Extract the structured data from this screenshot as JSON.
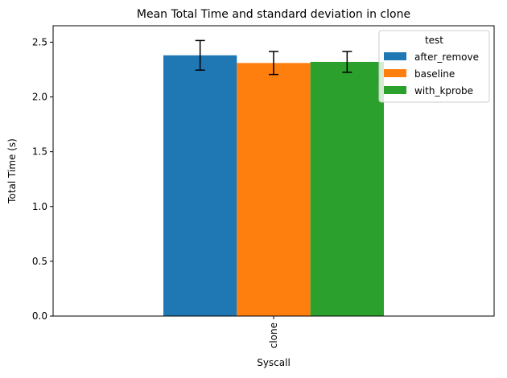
{
  "chart_data": {
    "type": "bar",
    "title": "Mean Total Time and standard deviation in clone",
    "xlabel": "Syscall",
    "ylabel": "Total Time (s)",
    "categories": [
      "clone"
    ],
    "ylim": [
      0,
      2.65
    ],
    "yticks": [
      0.0,
      0.5,
      1.0,
      1.5,
      2.0,
      2.5
    ],
    "ytick_labels": [
      "0.0",
      "0.5",
      "1.0",
      "1.5",
      "2.0",
      "2.5"
    ],
    "grid": false,
    "legend": {
      "title": "test",
      "placement": "top-right"
    },
    "series": [
      {
        "name": "after_remove",
        "values": [
          2.38
        ],
        "errors": [
          0.135
        ],
        "color": "#1f77b4"
      },
      {
        "name": "baseline",
        "values": [
          2.31
        ],
        "errors": [
          0.105
        ],
        "color": "#ff7f0e"
      },
      {
        "name": "with_kprobe",
        "values": [
          2.32
        ],
        "errors": [
          0.095
        ],
        "color": "#2ca02c"
      }
    ]
  }
}
